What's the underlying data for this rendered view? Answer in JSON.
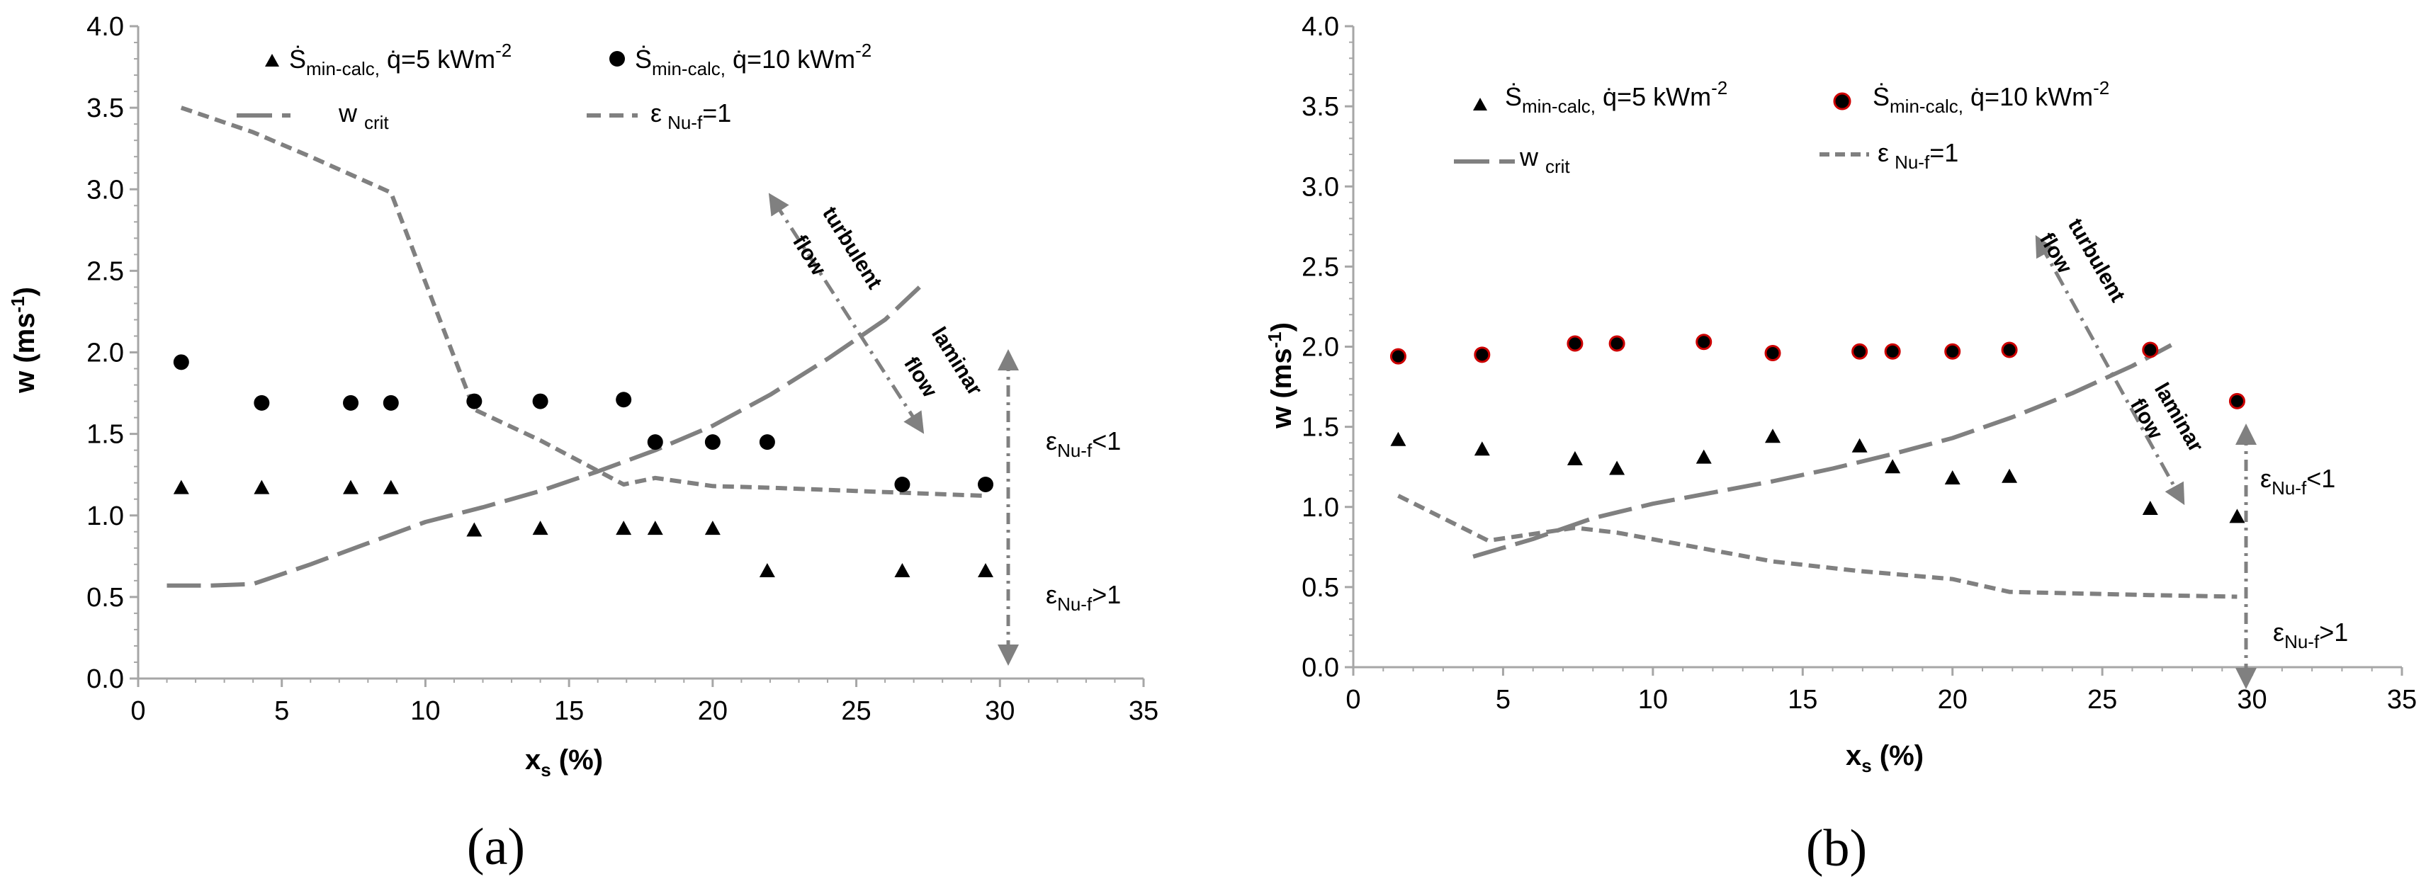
{
  "chart_data": [
    {
      "type": "scatter",
      "panel_label": "(a)",
      "xlabel": "x",
      "xlabel_sub": "s",
      "xlabel_unit": " (%)",
      "ylabel": "w (ms",
      "ylabel_sup": "-1",
      "ylabel_end": ")",
      "xlim": [
        0,
        35
      ],
      "ylim": [
        0,
        4
      ],
      "x_ticks": [
        "0",
        "5",
        "10",
        "15",
        "20",
        "25",
        "30",
        "35"
      ],
      "y_ticks": [
        "0.0",
        "0.5",
        "1.0",
        "1.5",
        "2.0",
        "2.5",
        "3.0",
        "3.5",
        "4.0"
      ],
      "legend": {
        "s5": {
          "pre": "Ṡ",
          "sub": "min-calc,",
          "mid": " q̇=5 kWm",
          "sup": "-2"
        },
        "s10": {
          "pre": "Ṡ",
          "sub": "min-calc,",
          "mid": " q̇=10 kWm",
          "sup": "-2"
        },
        "wcrit": {
          "pre": "w",
          "sub": "crit"
        },
        "eps": {
          "pre": "ε",
          "sub": "Nu-f",
          "post": "=1"
        }
      },
      "series": [
        {
          "name": "Smin q=5",
          "marker": "triangle",
          "x": [
            1.5,
            4.3,
            7.4,
            8.8,
            11.7,
            14.0,
            16.9,
            18.0,
            20.0,
            21.9,
            26.6,
            29.5
          ],
          "y": [
            1.17,
            1.17,
            1.17,
            1.17,
            0.91,
            0.92,
            0.92,
            0.92,
            0.92,
            0.66,
            0.66,
            0.66
          ]
        },
        {
          "name": "Smin q=10",
          "marker": "circle",
          "x": [
            1.5,
            4.3,
            7.4,
            8.8,
            11.7,
            14.0,
            16.9,
            18.0,
            20.0,
            21.9,
            26.6,
            29.5
          ],
          "y": [
            1.94,
            1.69,
            1.69,
            1.69,
            1.7,
            1.7,
            1.71,
            1.45,
            1.45,
            1.45,
            1.19,
            1.19
          ]
        },
        {
          "name": "w crit",
          "style": "long-dash",
          "x": [
            1.0,
            2.5,
            4.0,
            6.0,
            8.0,
            10.0,
            12.0,
            14.0,
            16.0,
            18.0,
            20.0,
            22.0,
            24.0,
            26.0,
            27.2
          ],
          "y": [
            0.57,
            0.57,
            0.58,
            0.7,
            0.83,
            0.96,
            1.05,
            1.15,
            1.27,
            1.4,
            1.55,
            1.74,
            1.96,
            2.2,
            2.4
          ]
        },
        {
          "name": "eps Nu-f = 1",
          "style": "short-dash",
          "x": [
            1.5,
            4.0,
            6.0,
            8.8,
            11.7,
            14.0,
            16.9,
            18.0,
            20.0,
            22.0,
            25.0,
            29.5
          ],
          "y": [
            3.5,
            3.35,
            3.2,
            2.98,
            1.65,
            1.46,
            1.19,
            1.23,
            1.18,
            1.17,
            1.15,
            1.12
          ]
        }
      ],
      "annotations": {
        "turbulent": "turbulent",
        "flow1": "flow",
        "laminar": "laminar",
        "flow2": "flow",
        "eps_lt": {
          "pre": "ε",
          "sub": "Nu-f",
          "post": "<1"
        },
        "eps_gt": {
          "pre": "ε",
          "sub": "Nu-f",
          "post": ">1"
        }
      }
    },
    {
      "type": "scatter",
      "panel_label": "(b)",
      "xlabel": "x",
      "xlabel_sub": "s",
      "xlabel_unit": " (%)",
      "ylabel": "w (ms",
      "ylabel_sup": "-1",
      "ylabel_end": ")",
      "xlim": [
        0,
        35
      ],
      "ylim": [
        0,
        4
      ],
      "x_ticks": [
        "0",
        "5",
        "10",
        "15",
        "20",
        "25",
        "30",
        "35"
      ],
      "y_ticks": [
        "0.0",
        "0.5",
        "1.0",
        "1.5",
        "2.0",
        "2.5",
        "3.0",
        "3.5",
        "4.0"
      ],
      "legend": {
        "s5": {
          "pre": "Ṡ",
          "sub": "min-calc,",
          "mid": " q̇=5 kWm",
          "sup": "-2"
        },
        "s10": {
          "pre": "Ṡ",
          "sub": "min-calc,",
          "mid": " q̇=10 kWm",
          "sup": "-2"
        },
        "wcrit": {
          "pre": "w",
          "sub": "crit"
        },
        "eps": {
          "pre": "ε",
          "sub": "Nu-f",
          "post": "=1"
        }
      },
      "series": [
        {
          "name": "Smin q=5",
          "marker": "triangle",
          "x": [
            1.5,
            4.3,
            7.4,
            8.8,
            11.7,
            14.0,
            16.9,
            18.0,
            20.0,
            21.9,
            26.6,
            29.5
          ],
          "y": [
            1.42,
            1.36,
            1.3,
            1.24,
            1.31,
            1.44,
            1.38,
            1.25,
            1.18,
            1.19,
            0.99,
            0.94
          ]
        },
        {
          "name": "Smin q=10",
          "marker": "circle-red-edge",
          "x": [
            1.5,
            4.3,
            7.4,
            8.8,
            11.7,
            14.0,
            16.9,
            18.0,
            20.0,
            21.9,
            26.6,
            29.5
          ],
          "y": [
            1.94,
            1.95,
            2.02,
            2.02,
            2.03,
            1.96,
            1.97,
            1.97,
            1.97,
            1.98,
            1.98,
            1.66
          ]
        },
        {
          "name": "w crit",
          "style": "long-dash",
          "x": [
            4.0,
            6.0,
            8.0,
            10.0,
            12.0,
            14.0,
            16.0,
            18.0,
            20.0,
            22.0,
            24.0,
            26.0,
            27.3
          ],
          "y": [
            0.69,
            0.8,
            0.93,
            1.02,
            1.09,
            1.16,
            1.24,
            1.33,
            1.43,
            1.56,
            1.71,
            1.88,
            2.01
          ]
        },
        {
          "name": "eps Nu-f = 1",
          "style": "short-dash",
          "x": [
            1.5,
            4.5,
            7.4,
            8.8,
            11.7,
            14.0,
            16.9,
            20.0,
            21.9,
            26.6,
            29.5
          ],
          "y": [
            1.07,
            0.79,
            0.87,
            0.84,
            0.74,
            0.66,
            0.6,
            0.55,
            0.47,
            0.45,
            0.44
          ]
        }
      ],
      "annotations": {
        "turbulent": "turbulent",
        "flow1": "flow",
        "laminar": "laminar",
        "flow2": "flow",
        "eps_lt": {
          "pre": "ε",
          "sub": "Nu-f",
          "post": "<1"
        },
        "eps_gt": {
          "pre": "ε",
          "sub": "Nu-f",
          "post": ">1"
        }
      }
    }
  ]
}
